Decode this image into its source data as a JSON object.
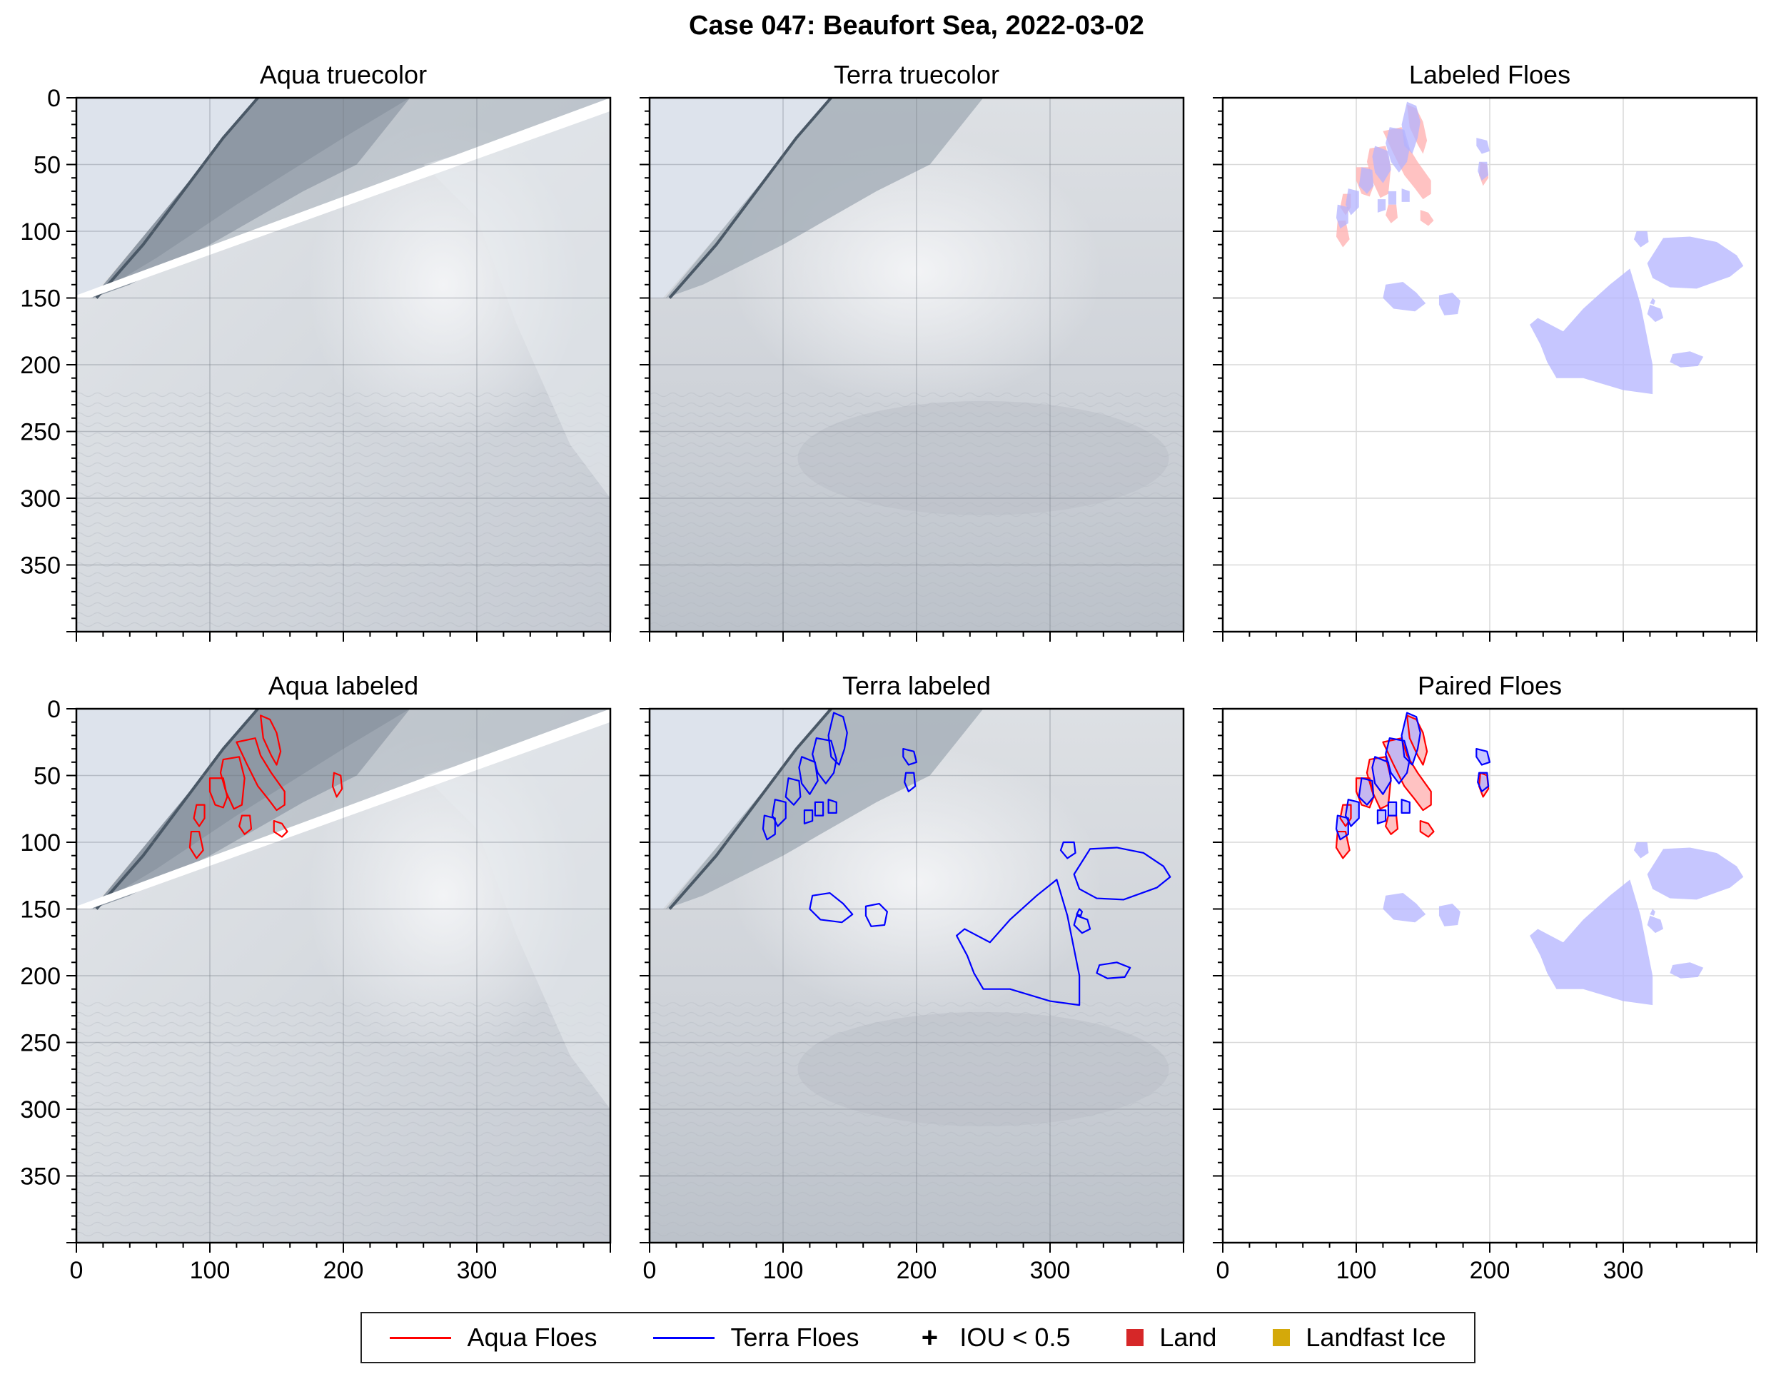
{
  "suptitle": "Case 047: Beaufort Sea, 2022-03-02",
  "colors": {
    "aqua": "#ff0000",
    "terra": "#0000ff",
    "aqua_fill": "#ffb3b3",
    "terra_fill": "#b3b3ff",
    "land": "#d62728",
    "landfast": "#d4a90a"
  },
  "chart_data": [
    {
      "type": "image",
      "title": "Aqua truecolor",
      "xlim": [
        0,
        400
      ],
      "ylim": [
        400,
        0
      ],
      "xticks": [
        0,
        100,
        200,
        300
      ],
      "yticks": [
        0,
        50,
        100,
        150,
        200,
        250,
        300,
        350
      ],
      "grid": true
    },
    {
      "type": "image",
      "title": "Terra truecolor",
      "xlim": [
        0,
        400
      ],
      "ylim": [
        400,
        0
      ],
      "xticks": [
        0,
        100,
        200,
        300
      ],
      "yticks": [
        0,
        50,
        100,
        150,
        200,
        250,
        300,
        350
      ],
      "grid": true
    },
    {
      "type": "image",
      "title": "Labeled Floes",
      "xlim": [
        0,
        400
      ],
      "ylim": [
        400,
        0
      ],
      "xticks": [
        0,
        100,
        200,
        300
      ],
      "yticks": [
        0,
        50,
        100,
        150,
        200,
        250,
        300,
        350
      ],
      "grid": true
    },
    {
      "type": "image",
      "title": "Aqua labeled",
      "xlim": [
        0,
        400
      ],
      "ylim": [
        400,
        0
      ],
      "xticks": [
        0,
        100,
        200,
        300
      ],
      "yticks": [
        0,
        50,
        100,
        150,
        200,
        250,
        300,
        350
      ],
      "grid": true
    },
    {
      "type": "image",
      "title": "Terra labeled",
      "xlim": [
        0,
        400
      ],
      "ylim": [
        400,
        0
      ],
      "xticks": [
        0,
        100,
        200,
        300
      ],
      "yticks": [
        0,
        50,
        100,
        150,
        200,
        250,
        300,
        350
      ],
      "grid": true
    },
    {
      "type": "image",
      "title": "Paired Floes",
      "xlim": [
        0,
        400
      ],
      "ylim": [
        400,
        0
      ],
      "xticks": [
        0,
        100,
        200,
        300
      ],
      "yticks": [
        0,
        50,
        100,
        150,
        200,
        250,
        300,
        350
      ],
      "grid": true
    }
  ],
  "floes": {
    "aqua": [
      [
        [
          138,
          5
        ],
        [
          145,
          8
        ],
        [
          150,
          18
        ],
        [
          153,
          32
        ],
        [
          150,
          42
        ],
        [
          146,
          35
        ],
        [
          140,
          22
        ]
      ],
      [
        [
          120,
          25
        ],
        [
          134,
          22
        ],
        [
          138,
          35
        ],
        [
          146,
          48
        ],
        [
          156,
          62
        ],
        [
          156,
          72
        ],
        [
          150,
          76
        ],
        [
          144,
          68
        ],
        [
          136,
          58
        ],
        [
          128,
          42
        ]
      ],
      [
        [
          110,
          38
        ],
        [
          122,
          36
        ],
        [
          126,
          52
        ],
        [
          124,
          72
        ],
        [
          118,
          75
        ],
        [
          112,
          62
        ],
        [
          108,
          48
        ]
      ],
      [
        [
          100,
          52
        ],
        [
          110,
          52
        ],
        [
          113,
          66
        ],
        [
          110,
          74
        ],
        [
          104,
          72
        ],
        [
          100,
          62
        ]
      ],
      [
        [
          90,
          72
        ],
        [
          96,
          72
        ],
        [
          96,
          82
        ],
        [
          92,
          88
        ],
        [
          88,
          82
        ]
      ],
      [
        [
          86,
          92
        ],
        [
          92,
          92
        ],
        [
          95,
          106
        ],
        [
          90,
          112
        ],
        [
          85,
          104
        ]
      ],
      [
        [
          124,
          80
        ],
        [
          130,
          80
        ],
        [
          131,
          90
        ],
        [
          126,
          94
        ],
        [
          122,
          88
        ]
      ],
      [
        [
          148,
          84
        ],
        [
          154,
          86
        ],
        [
          158,
          92
        ],
        [
          154,
          96
        ],
        [
          148,
          92
        ]
      ],
      [
        [
          193,
          48
        ],
        [
          198,
          50
        ],
        [
          199,
          60
        ],
        [
          195,
          66
        ],
        [
          192,
          58
        ]
      ]
    ],
    "terra": [
      [
        [
          138,
          3
        ],
        [
          145,
          6
        ],
        [
          148,
          18
        ],
        [
          146,
          30
        ],
        [
          142,
          42
        ],
        [
          136,
          36
        ],
        [
          134,
          20
        ]
      ],
      [
        [
          125,
          22
        ],
        [
          136,
          24
        ],
        [
          140,
          38
        ],
        [
          138,
          48
        ],
        [
          132,
          56
        ],
        [
          126,
          48
        ],
        [
          122,
          34
        ]
      ],
      [
        [
          114,
          36
        ],
        [
          124,
          40
        ],
        [
          126,
          54
        ],
        [
          120,
          64
        ],
        [
          114,
          56
        ],
        [
          112,
          44
        ]
      ],
      [
        [
          104,
          52
        ],
        [
          112,
          54
        ],
        [
          113,
          66
        ],
        [
          108,
          72
        ],
        [
          102,
          66
        ]
      ],
      [
        [
          94,
          68
        ],
        [
          102,
          70
        ],
        [
          102,
          82
        ],
        [
          96,
          88
        ],
        [
          92,
          80
        ]
      ],
      [
        [
          86,
          80
        ],
        [
          94,
          82
        ],
        [
          94,
          94
        ],
        [
          88,
          98
        ],
        [
          85,
          90
        ]
      ],
      [
        [
          116,
          76
        ],
        [
          122,
          76
        ],
        [
          122,
          84
        ],
        [
          116,
          86
        ]
      ],
      [
        [
          124,
          70
        ],
        [
          130,
          70
        ],
        [
          130,
          80
        ],
        [
          124,
          80
        ]
      ],
      [
        [
          134,
          68
        ],
        [
          140,
          70
        ],
        [
          140,
          78
        ],
        [
          134,
          78
        ]
      ],
      [
        [
          190,
          30
        ],
        [
          198,
          32
        ],
        [
          200,
          40
        ],
        [
          194,
          42
        ],
        [
          190,
          36
        ]
      ],
      [
        [
          192,
          48
        ],
        [
          198,
          48
        ],
        [
          199,
          58
        ],
        [
          194,
          62
        ],
        [
          191,
          55
        ]
      ],
      [
        [
          122,
          140
        ],
        [
          135,
          138
        ],
        [
          145,
          146
        ],
        [
          152,
          154
        ],
        [
          144,
          160
        ],
        [
          128,
          158
        ],
        [
          120,
          150
        ]
      ],
      [
        [
          162,
          148
        ],
        [
          172,
          146
        ],
        [
          178,
          152
        ],
        [
          176,
          162
        ],
        [
          166,
          163
        ],
        [
          162,
          155
        ]
      ],
      [
        [
          310,
          100
        ],
        [
          318,
          100
        ],
        [
          319,
          108
        ],
        [
          313,
          112
        ],
        [
          308,
          106
        ]
      ],
      [
        [
          330,
          105
        ],
        [
          350,
          104
        ],
        [
          370,
          108
        ],
        [
          385,
          118
        ],
        [
          390,
          126
        ],
        [
          380,
          134
        ],
        [
          355,
          143
        ],
        [
          335,
          142
        ],
        [
          322,
          135
        ],
        [
          318,
          124
        ]
      ],
      [
        [
          305,
          128
        ],
        [
          313,
          155
        ],
        [
          318,
          180
        ],
        [
          322,
          200
        ],
        [
          322,
          222
        ],
        [
          300,
          219
        ],
        [
          270,
          210
        ],
        [
          250,
          210
        ],
        [
          243,
          198
        ],
        [
          238,
          185
        ],
        [
          230,
          170
        ],
        [
          236,
          165
        ],
        [
          255,
          175
        ],
        [
          270,
          158
        ],
        [
          290,
          140
        ]
      ],
      [
        [
          322,
          150
        ],
        [
          324,
          152
        ],
        [
          323,
          155
        ],
        [
          320,
          154
        ]
      ],
      [
        [
          320,
          155
        ],
        [
          328,
          158
        ],
        [
          330,
          165
        ],
        [
          324,
          168
        ],
        [
          318,
          162
        ]
      ],
      [
        [
          337,
          192
        ],
        [
          350,
          190
        ],
        [
          360,
          194
        ],
        [
          356,
          201
        ],
        [
          343,
          202
        ],
        [
          335,
          198
        ]
      ]
    ]
  },
  "legend": [
    {
      "label": "Aqua Floes",
      "kind": "line",
      "color": "#ff0000"
    },
    {
      "label": "Terra Floes",
      "kind": "line",
      "color": "#0000ff"
    },
    {
      "label": "IOU < 0.5",
      "kind": "plus",
      "color": "#000000"
    },
    {
      "label": "Land",
      "kind": "square",
      "color": "#d62728"
    },
    {
      "label": "Landfast Ice",
      "kind": "square",
      "color": "#d4a90a"
    }
  ]
}
